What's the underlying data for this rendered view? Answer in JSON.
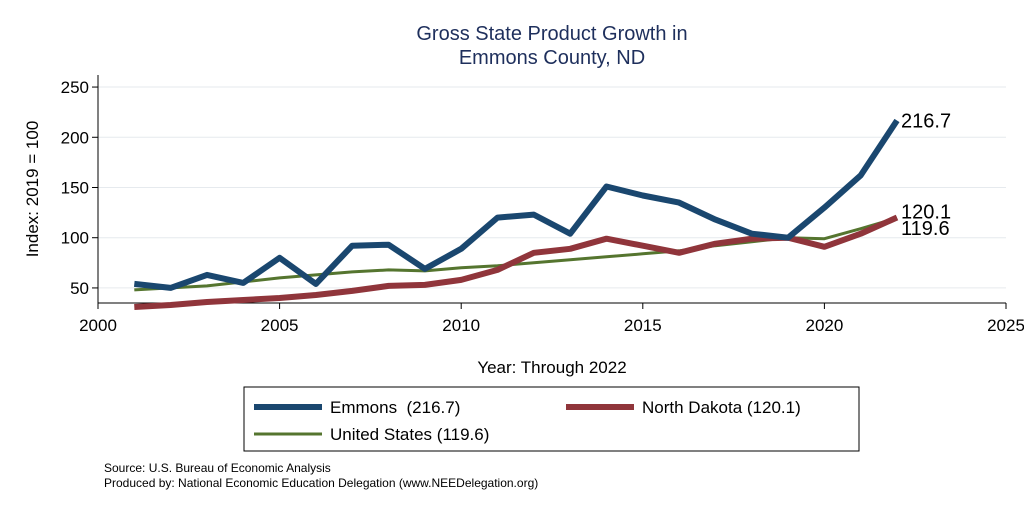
{
  "chart_data": {
    "type": "line",
    "title_lines": [
      "Gross State Product Growth in",
      "Emmons County, ND"
    ],
    "xlabel": "Year: Through 2022",
    "ylabel": "Index: 2019 = 100",
    "xlim": [
      2000,
      2025
    ],
    "ylim": [
      35,
      262
    ],
    "x_ticks": [
      2000,
      2005,
      2010,
      2015,
      2020,
      2025
    ],
    "y_ticks": [
      50,
      100,
      150,
      200,
      250
    ],
    "grid": "horizontal",
    "x": [
      2001,
      2002,
      2003,
      2004,
      2005,
      2006,
      2007,
      2008,
      2009,
      2010,
      2011,
      2012,
      2013,
      2014,
      2015,
      2016,
      2017,
      2018,
      2019,
      2020,
      2021,
      2022
    ],
    "series": [
      {
        "name": "Emmons",
        "color": "#1a476f",
        "end_label": "216.7",
        "values": [
          54,
          50,
          63,
          55,
          80,
          54,
          92,
          93,
          69,
          89,
          120,
          123,
          104,
          151,
          142,
          135,
          118,
          104,
          100,
          130,
          162,
          216.7
        ]
      },
      {
        "name": "North Dakota",
        "color": "#90353b",
        "end_label": "120.1",
        "values": [
          31,
          33,
          36,
          38,
          40,
          43,
          47,
          52,
          53,
          58,
          68,
          85,
          89,
          99,
          92,
          85,
          94,
          99,
          100,
          91,
          104,
          120.1
        ]
      },
      {
        "name": "United States",
        "color": "#55752f",
        "end_label": "119.6",
        "values": [
          48,
          50,
          52,
          56,
          60,
          63,
          66,
          68,
          67,
          70,
          72,
          75,
          78,
          81,
          84,
          87,
          92,
          96,
          100,
          99,
          109,
          119.6
        ]
      }
    ],
    "legend": {
      "position": "bottom",
      "items": [
        "Emmons  (216.7)",
        "North Dakota (120.1)",
        "United States (119.6)"
      ]
    },
    "notes": [
      "Source: U.S. Bureau of Economic Analysis",
      "Produced by: National Economic Education Delegation (www.NEEDelegation.org)"
    ]
  }
}
